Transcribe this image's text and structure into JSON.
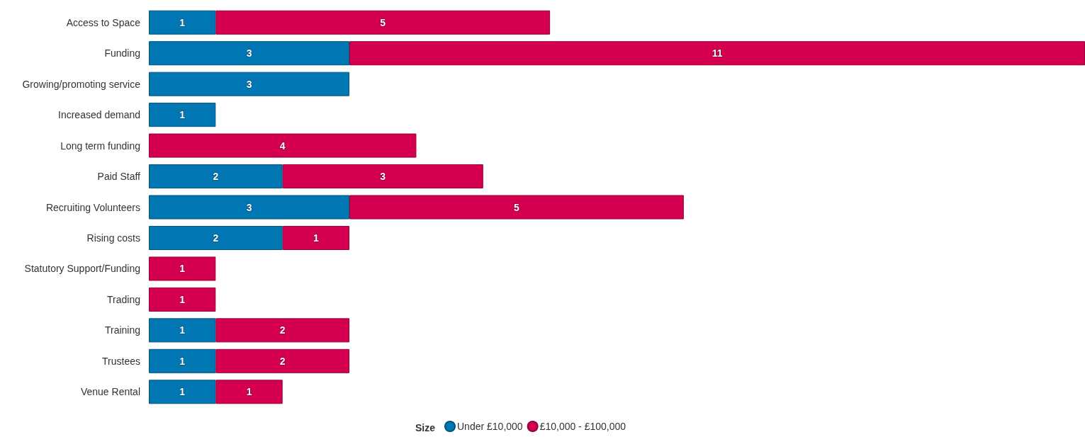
{
  "chart_data": {
    "type": "bar",
    "orientation": "horizontal",
    "stacked": true,
    "data_labels": true,
    "legend": "bottom",
    "legend_title": "Size",
    "categories": [
      "Access to Space",
      "Funding",
      "Growing/promoting service",
      "Increased demand",
      "Long term funding",
      "Paid Staff",
      "Recruiting Volunteers",
      "Rising costs",
      "Statutory Support/Funding",
      "Trading",
      "Training",
      "Trustees",
      "Venue Rental"
    ],
    "series": [
      {
        "name": "Under £10,000",
        "color": "#0077b3",
        "values": [
          1,
          3,
          3,
          1,
          null,
          2,
          3,
          2,
          null,
          null,
          1,
          1,
          1
        ]
      },
      {
        "name": "£10,000 - £100,000",
        "color": "#d4004f",
        "values": [
          5,
          11,
          null,
          null,
          4,
          3,
          5,
          1,
          1,
          1,
          2,
          2,
          1
        ]
      }
    ]
  }
}
